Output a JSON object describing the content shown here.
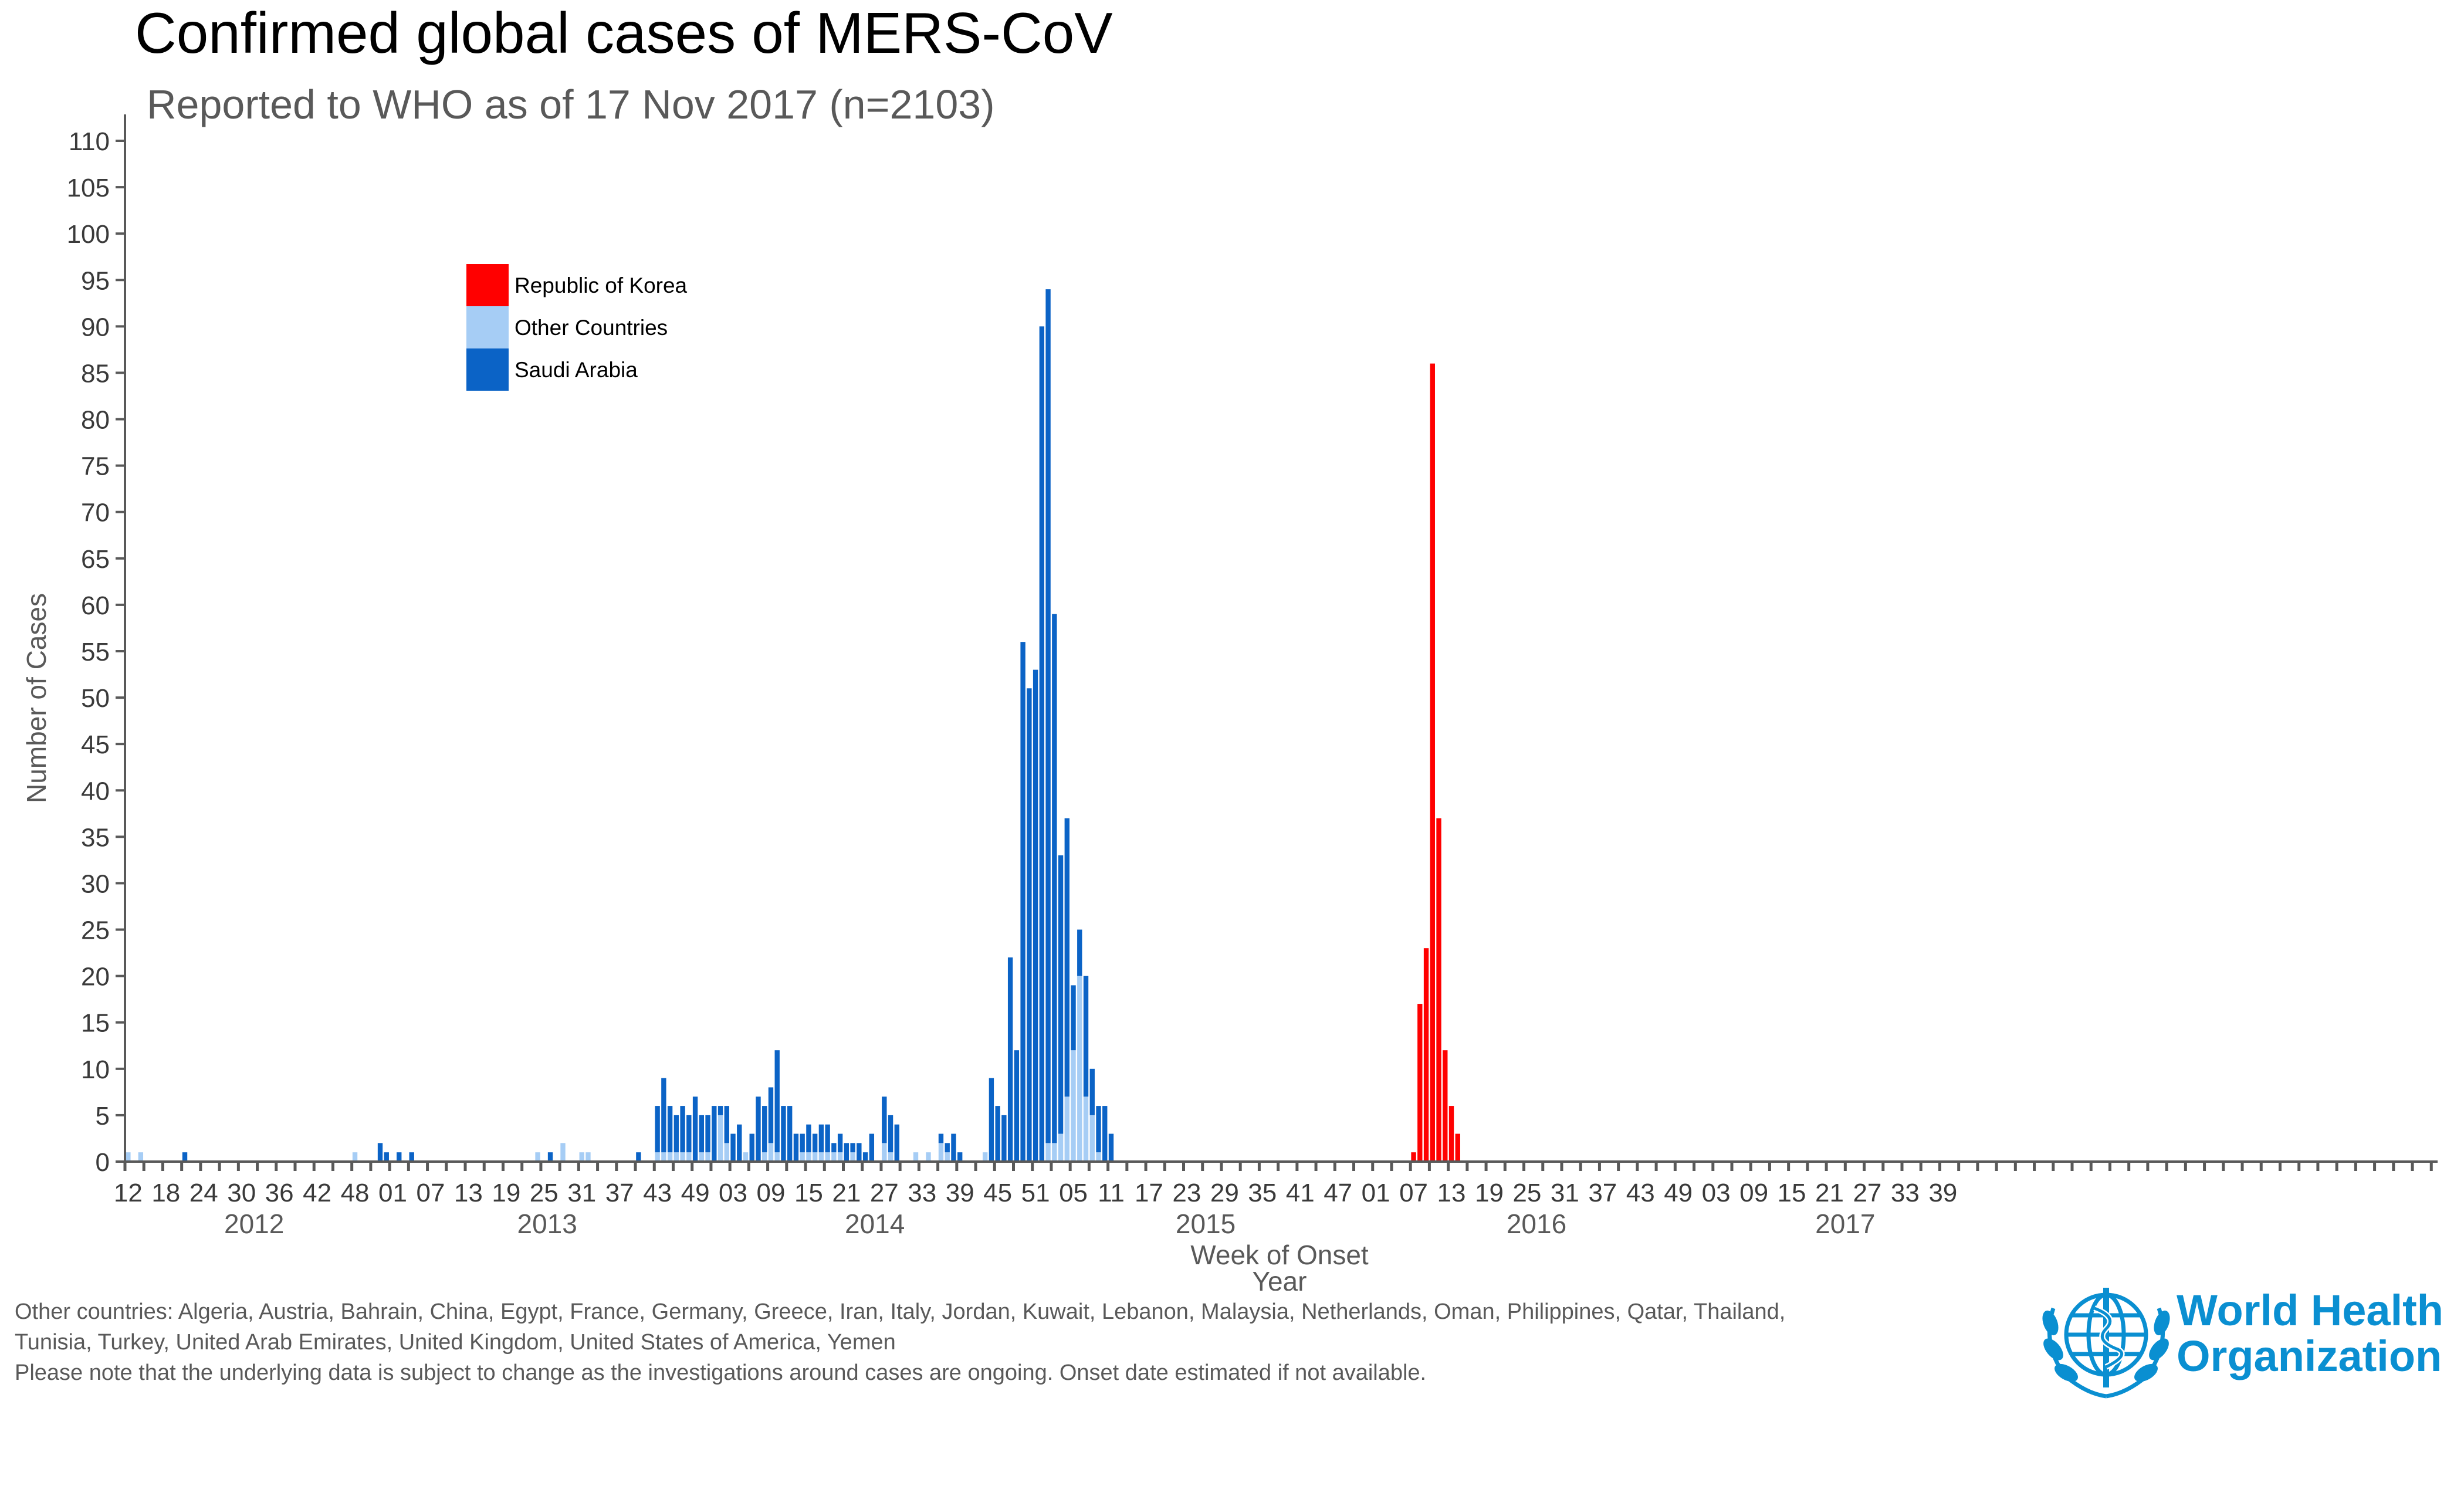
{
  "title": "Confirmed global cases of MERS-CoV",
  "subtitle": "Reported to WHO as of 17 Nov 2017 (n=2103)",
  "colors": {
    "korea": "#ff0000",
    "other": "#a6cdf5",
    "saudi": "#0b63c6",
    "axis": "#595959"
  },
  "chart_data": {
    "type": "bar",
    "stacked": true,
    "xlabel": "Week of Onset",
    "xlabel2": "Year",
    "ylabel": "Number of Cases",
    "ylim": [
      0,
      110
    ],
    "ytick_step": 5,
    "grid": false,
    "legend_position": "top-left",
    "start": {
      "year": 2012,
      "week": 12
    },
    "weeks_per_year": {
      "2012": 52,
      "2013": 52,
      "2014": 52,
      "2015": 53,
      "2016": 52,
      "2017": 46
    },
    "year_labels": [
      "2012",
      "2013",
      "2014",
      "2015",
      "2016",
      "2017"
    ],
    "week_tick_labels": [
      "12",
      "18",
      "24",
      "30",
      "36",
      "42",
      "48",
      "01",
      "07",
      "13",
      "19",
      "25",
      "31",
      "37",
      "43",
      "49",
      "03",
      "09",
      "15",
      "21",
      "27",
      "33",
      "39",
      "45",
      "51",
      "05",
      "11",
      "17",
      "23",
      "29",
      "35",
      "41",
      "47",
      "01",
      "07",
      "13",
      "19",
      "25",
      "31",
      "37",
      "43",
      "49",
      "03",
      "09",
      "15",
      "21",
      "27",
      "33",
      "39"
    ],
    "series": [
      {
        "name": "Republic of Korea",
        "color": "#ff0000",
        "values": [
          0,
          0,
          0,
          0,
          0,
          0,
          0,
          0,
          0,
          0,
          0,
          0,
          0,
          0,
          0,
          0,
          0,
          0,
          0,
          0,
          0,
          0,
          0,
          0,
          0,
          0,
          0,
          0,
          0,
          0,
          0,
          0,
          0,
          0,
          0,
          0,
          0,
          0,
          0,
          0,
          0,
          0,
          0,
          0,
          0,
          0,
          0,
          0,
          0,
          0,
          0,
          0,
          0,
          0,
          0,
          0,
          0,
          0,
          0,
          0,
          0,
          0,
          0,
          0,
          0,
          0,
          0,
          0,
          0,
          0,
          0,
          0,
          0,
          0,
          0,
          0,
          0,
          0,
          0,
          0,
          0,
          0,
          0,
          0,
          0,
          0,
          0,
          0,
          0,
          0,
          0,
          0,
          0,
          0,
          0,
          0,
          0,
          0,
          0,
          0,
          0,
          0,
          0,
          0,
          0,
          0,
          0,
          0,
          0,
          0,
          0,
          0,
          0,
          0,
          0,
          0,
          0,
          0,
          0,
          0,
          0,
          0,
          0,
          0,
          0,
          0,
          0,
          0,
          0,
          0,
          0,
          0,
          0,
          0,
          0,
          0,
          0,
          0,
          0,
          0,
          0,
          0,
          0,
          0,
          0,
          0,
          0,
          0,
          0,
          0,
          0,
          0,
          0,
          0,
          0,
          0,
          0,
          0,
          0,
          0,
          0,
          0,
          0,
          0,
          0,
          0,
          0,
          0,
          0,
          0,
          0,
          0,
          0,
          0,
          0,
          0,
          0,
          0,
          0,
          0,
          0,
          0,
          0,
          0,
          0,
          0,
          0,
          0,
          0,
          0,
          0,
          0,
          0,
          0,
          0,
          0,
          0,
          0,
          0,
          0,
          0,
          0,
          0,
          0,
          1,
          17,
          23,
          86,
          37,
          12,
          6,
          3,
          0,
          0,
          0,
          0,
          0,
          0,
          0,
          0,
          0,
          0,
          0,
          0,
          0,
          0,
          0,
          0,
          0,
          0,
          0,
          0,
          0,
          0,
          0,
          0,
          0,
          0,
          0,
          0,
          0,
          0,
          0,
          0,
          0,
          0,
          0,
          0,
          0,
          0,
          0,
          0,
          0,
          0,
          0,
          0,
          0,
          0,
          0,
          0,
          0,
          0,
          0,
          0,
          0,
          0,
          0,
          0,
          0,
          0,
          0,
          0,
          0,
          0,
          0,
          0,
          0,
          0,
          0,
          0,
          0,
          0,
          0,
          0,
          0,
          0,
          0,
          0,
          0,
          0,
          0,
          0,
          0,
          0,
          0,
          0,
          0,
          0,
          0,
          0,
          0,
          0,
          0,
          0,
          0,
          0,
          0,
          0,
          0,
          0,
          0,
          0,
          0,
          0,
          0,
          0,
          0,
          0,
          0,
          0,
          0,
          0,
          0,
          0,
          0,
          0,
          0,
          0,
          0,
          0,
          0,
          0,
          0,
          0,
          0,
          0,
          0,
          0,
          0,
          0,
          0,
          0,
          0,
          0,
          0,
          0,
          0,
          0,
          0,
          0,
          0,
          0,
          0,
          0,
          0,
          0,
          0,
          0,
          0,
          0,
          0,
          0,
          0,
          0,
          0,
          0,
          0
        ]
      },
      {
        "name": "Other Countries",
        "color": "#a6cdf5",
        "values": [
          1,
          0,
          1,
          0,
          0,
          0,
          0,
          0,
          0,
          0,
          0,
          0,
          0,
          0,
          0,
          0,
          0,
          0,
          0,
          0,
          0,
          0,
          0,
          0,
          0,
          0,
          0,
          0,
          0,
          0,
          0,
          0,
          0,
          0,
          0,
          0,
          1,
          0,
          0,
          0,
          0,
          0,
          0,
          0,
          0,
          0,
          0,
          0,
          0,
          0,
          0,
          0,
          0,
          0,
          0,
          0,
          0,
          0,
          0,
          0,
          0,
          0,
          0,
          0,
          0,
          1,
          0,
          0,
          0,
          2,
          0,
          0,
          1,
          1,
          0,
          0,
          0,
          0,
          0,
          0,
          0,
          0,
          0,
          0,
          1,
          1,
          1,
          1,
          1,
          1,
          0,
          1,
          1,
          0,
          5,
          2,
          0,
          0,
          1,
          0,
          0,
          1,
          2,
          1,
          0,
          0,
          0,
          1,
          1,
          1,
          1,
          1,
          1,
          1,
          0,
          1,
          0,
          0,
          0,
          0,
          2,
          1,
          0,
          0,
          0,
          1,
          0,
          1,
          0,
          2,
          1,
          0,
          0,
          0,
          0,
          0,
          1,
          0,
          0,
          0,
          0,
          0,
          0,
          0,
          0,
          0,
          2,
          2,
          3,
          7,
          12,
          20,
          7,
          5,
          1,
          0,
          0,
          0,
          0,
          0,
          0,
          0,
          0,
          0,
          0,
          0,
          0,
          0,
          0,
          0,
          0,
          0,
          0,
          0,
          0,
          0,
          0,
          0,
          0,
          0,
          0,
          0,
          0,
          0,
          0,
          0,
          0,
          0,
          0,
          0,
          0,
          0,
          0,
          0,
          0,
          0,
          0,
          0,
          0,
          0,
          0,
          0,
          0,
          0,
          0,
          0,
          0,
          0,
          0,
          0,
          0,
          0,
          0,
          0,
          0,
          0,
          0,
          0,
          0,
          0,
          0,
          0,
          0,
          0,
          0,
          0,
          0,
          0,
          0,
          0,
          0,
          0,
          0,
          0,
          0,
          0,
          0,
          0,
          0,
          0,
          0,
          0,
          0,
          0,
          0,
          0,
          0,
          0,
          0,
          0,
          0,
          0,
          0,
          0,
          0,
          0,
          0,
          0,
          0,
          0,
          0,
          0,
          0,
          0,
          0,
          0,
          0,
          0,
          0,
          0,
          0,
          0,
          0,
          0,
          0,
          0,
          0,
          0,
          0,
          0,
          0,
          0,
          0,
          0,
          0,
          0,
          0,
          0,
          0,
          0,
          0,
          0,
          0,
          0,
          0,
          0,
          0,
          0,
          0,
          0,
          0,
          0,
          0,
          0,
          0,
          0,
          0,
          0,
          0,
          0,
          0,
          0,
          0,
          0,
          0,
          0,
          0,
          0,
          0,
          0,
          0,
          0,
          0,
          0,
          0,
          0,
          0,
          0,
          0,
          0,
          0,
          0,
          0,
          0,
          0,
          0,
          0,
          0,
          0,
          0,
          0,
          0,
          0,
          0,
          0,
          0,
          0,
          0,
          0,
          0,
          0,
          0,
          0,
          0,
          0,
          0
        ]
      },
      {
        "name": "Saudi Arabia",
        "color": "#0b63c6",
        "values": [
          0,
          0,
          0,
          0,
          0,
          0,
          0,
          0,
          0,
          1,
          0,
          0,
          0,
          0,
          0,
          0,
          0,
          0,
          0,
          0,
          0,
          0,
          0,
          0,
          0,
          0,
          0,
          0,
          0,
          0,
          0,
          0,
          0,
          0,
          0,
          0,
          0,
          0,
          0,
          0,
          2,
          1,
          0,
          1,
          0,
          1,
          0,
          0,
          0,
          0,
          0,
          0,
          0,
          0,
          0,
          0,
          0,
          0,
          0,
          0,
          0,
          0,
          0,
          0,
          0,
          0,
          0,
          1,
          0,
          0,
          0,
          0,
          0,
          0,
          0,
          0,
          0,
          0,
          0,
          0,
          0,
          1,
          0,
          0,
          5,
          8,
          5,
          4,
          5,
          4,
          7,
          4,
          4,
          6,
          1,
          4,
          3,
          4,
          0,
          3,
          7,
          5,
          6,
          11,
          6,
          6,
          3,
          2,
          3,
          2,
          3,
          3,
          1,
          2,
          2,
          1,
          2,
          1,
          3,
          0,
          5,
          4,
          4,
          0,
          0,
          0,
          0,
          0,
          0,
          1,
          1,
          3,
          1,
          0,
          0,
          0,
          0,
          9,
          6,
          5,
          22,
          12,
          56,
          51,
          53,
          90,
          92,
          57,
          30,
          30,
          7,
          5,
          13,
          5,
          5,
          6,
          3,
          0,
          0,
          0,
          0,
          0,
          0,
          0,
          0,
          0,
          0,
          0,
          0,
          0,
          0,
          0,
          0,
          0,
          0,
          0,
          0,
          0,
          0,
          0,
          0,
          0,
          0,
          0,
          0,
          0,
          0,
          0,
          0,
          0,
          0,
          0,
          0,
          0,
          0,
          0,
          0,
          0,
          0,
          0,
          0,
          0,
          0,
          0,
          0,
          0,
          0,
          0,
          0,
          0,
          0,
          0,
          0,
          0,
          0,
          0,
          0,
          0,
          0,
          0,
          0,
          0,
          0,
          0,
          0,
          0,
          0,
          0,
          0,
          0,
          0,
          0,
          0,
          0,
          0,
          0,
          0,
          0,
          0,
          0,
          0,
          0,
          0,
          0,
          0,
          0,
          0,
          0,
          0,
          0,
          0,
          0,
          0,
          0,
          0,
          0,
          0,
          0,
          0,
          0,
          0,
          0,
          0,
          0,
          0,
          0,
          0,
          0,
          0,
          0,
          0,
          0,
          0,
          0,
          0,
          0,
          0,
          0,
          0,
          0,
          0,
          0,
          0,
          0,
          0,
          0,
          0,
          0,
          0,
          0,
          0,
          0,
          0,
          0,
          0,
          0,
          0,
          0,
          0,
          0,
          0,
          0,
          0,
          0,
          0,
          0,
          0,
          0,
          0,
          0,
          0,
          0,
          0,
          0,
          0,
          0,
          0,
          0,
          0,
          0,
          0,
          0,
          0,
          0,
          0,
          0,
          0,
          0,
          0,
          0,
          0,
          0,
          0,
          0,
          0,
          0,
          0,
          0,
          0,
          0,
          0,
          0,
          0,
          0,
          0,
          0,
          0,
          0,
          0,
          0,
          0,
          0,
          0,
          0,
          0,
          0,
          0,
          0,
          0,
          0,
          0
        ]
      }
    ]
  },
  "legend": [
    {
      "label": "Republic of Korea",
      "color": "#ff0000"
    },
    {
      "label": "Other Countries",
      "color": "#a6cdf5"
    },
    {
      "label": "Saudi Arabia",
      "color": "#0b63c6"
    }
  ],
  "footnote_lines": [
    "Other countries: Algeria, Austria, Bahrain, China, Egypt, France, Germany, Greece, Iran, Italy, Jordan, Kuwait, Lebanon, Malaysia, Netherlands, Oman, Philippines, Qatar, Thailand,",
    "Tunisia, Turkey, United Arab Emirates, United Kingdom, United States of America, Yemen",
    "Please note that the underlying data is subject to change as the investigations around cases are ongoing. Onset date estimated if not available."
  ],
  "logo": {
    "line1": "World Health",
    "line2": "Organization",
    "icon": "who-emblem-icon",
    "color": "#0a8fd1"
  }
}
